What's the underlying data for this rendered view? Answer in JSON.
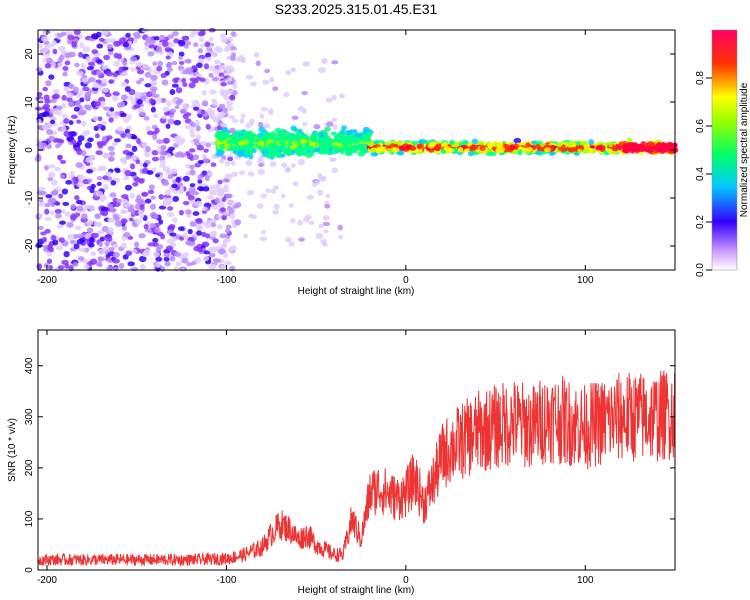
{
  "figure": {
    "title": "S233.2025.315.01.45.E31"
  },
  "colors": {
    "snr_line": "#ee3333",
    "axis": "#000000",
    "background": "#ffffff"
  },
  "chart_data": [
    {
      "type": "heatmap",
      "name": "spectrogram",
      "title": "S233.2025.315.01.45.E31",
      "xlabel": "Height of straight line (km)",
      "ylabel": "Frequency (Hz)",
      "xlim": [
        -205,
        150
      ],
      "ylim": [
        -25,
        25
      ],
      "xticks": [
        -200,
        -100,
        0,
        100
      ],
      "yticks": [
        -20,
        -10,
        0,
        10,
        20
      ],
      "colorbar": {
        "label": "Normalized spectral amplitude",
        "range": [
          0.0,
          1.0
        ],
        "ticks": [
          0.0,
          0.2,
          0.4,
          0.6,
          0.8
        ],
        "tick_labels": [
          "0.0",
          "0.2",
          "0.4",
          "0.6",
          "0.8"
        ],
        "colormap": [
          "#ffffff",
          "#9933ff",
          "#3300ff",
          "#00ffff",
          "#00ff00",
          "#ffff00",
          "#ff0000",
          "#ff0066"
        ]
      },
      "regions": [
        {
          "x_range": [
            -205,
            -95
          ],
          "freq_spread_hz": 25,
          "amplitude": "low (noise)"
        },
        {
          "x_range": [
            -105,
            -20
          ],
          "freq_center_hz": 1.5,
          "freq_spread_hz": 6,
          "amplitude": "medium"
        },
        {
          "x_range": [
            -20,
            150
          ],
          "freq_center_hz": 0.5,
          "freq_spread_hz": 1.5,
          "amplitude": "high"
        }
      ]
    },
    {
      "type": "line",
      "name": "snr",
      "xlabel": "Height of straight line (km)",
      "ylabel": "SNR (10 * v/v)",
      "xlim": [
        -205,
        150
      ],
      "ylim": [
        0,
        470
      ],
      "xticks": [
        -200,
        -100,
        0,
        100
      ],
      "yticks": [
        0,
        100,
        200,
        300,
        400
      ],
      "series": [
        {
          "name": "SNR",
          "x": [
            -205,
            -180,
            -160,
            -140,
            -120,
            -100,
            -90,
            -80,
            -75,
            -70,
            -65,
            -60,
            -55,
            -50,
            -45,
            -40,
            -35,
            -30,
            -25,
            -20,
            -15,
            -10,
            -5,
            0,
            5,
            10,
            15,
            20,
            25,
            30,
            40,
            50,
            60,
            70,
            80,
            90,
            100,
            110,
            120,
            130,
            140,
            150
          ],
          "values": [
            20,
            20,
            20,
            20,
            20,
            22,
            30,
            45,
            70,
            90,
            80,
            60,
            70,
            50,
            40,
            30,
            30,
            100,
            60,
            150,
            160,
            150,
            140,
            150,
            180,
            130,
            170,
            220,
            240,
            250,
            270,
            280,
            290,
            280,
            300,
            290,
            280,
            290,
            300,
            300,
            300,
            310
          ]
        }
      ]
    }
  ]
}
